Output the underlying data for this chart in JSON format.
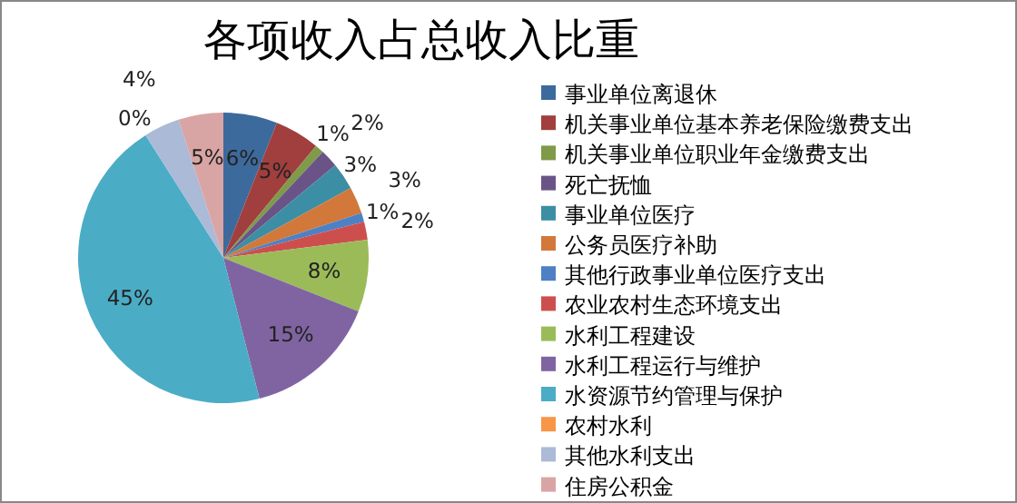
{
  "chart_data": {
    "type": "pie",
    "title": "各项收入占总收入比重",
    "legend": "right",
    "categories": [
      "事业单位离退休",
      "机关事业单位基本养老保险缴费支出",
      "机关事业单位职业年金缴费支出",
      "死亡抚恤",
      "事业单位医疗",
      "公务员医疗补助",
      "其他行政事业单位医疗支出",
      "农业农村生态环境支出",
      "水利工程建设",
      "水利工程运行与维护",
      "水资源节约管理与保护",
      "农村水利",
      "其他水利支出",
      "住房公积金"
    ],
    "values": [
      6,
      5,
      1,
      2,
      3,
      3,
      1,
      2,
      8,
      15,
      45,
      0,
      4,
      5
    ],
    "value_labels": [
      "6%",
      "5%",
      "1%",
      "2%",
      "3%",
      "3%",
      "1%",
      "2%",
      "8%",
      "15%",
      "45%",
      "0%",
      "4%",
      "5%"
    ],
    "colors": [
      "#3d6a9c",
      "#a03f3d",
      "#7f9a48",
      "#6a5487",
      "#3c8ea4",
      "#d2783a",
      "#4e81c4",
      "#cd4f4d",
      "#9bbb59",
      "#8064a2",
      "#4bacc6",
      "#f79646",
      "#aabad7",
      "#d9a5a4"
    ]
  }
}
